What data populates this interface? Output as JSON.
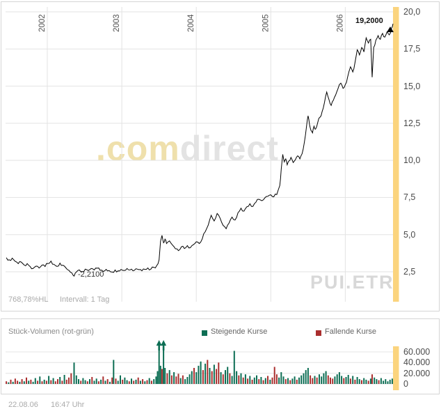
{
  "main_chart": {
    "current_price_label": "19,2000",
    "low_price_label": "-2,2100",
    "percent_hl": "768,78%HL",
    "interval": "Intervall: 1 Tag",
    "watermark": {
      "com": ".com",
      "direct": "direct",
      "symbol": "PUI.ETR"
    }
  },
  "volume_panel": {
    "title": "Stück-Volumen (rot-grün)",
    "legend": [
      {
        "label": "Steigende Kurse",
        "color": "#0d6e54"
      },
      {
        "label": "Fallende Kurse",
        "color": "#aa2e2e"
      }
    ]
  },
  "footer": {
    "date": "22.08.06",
    "time": "16:47 Uhr"
  },
  "chart_data": [
    {
      "type": "line",
      "name": "PUI.ETR",
      "x_range": [
        2001.44,
        2006.64
      ],
      "x_ticks": [
        {
          "label": "2002",
          "value": 2002
        },
        {
          "label": "2003",
          "value": 2003
        },
        {
          "label": "2004",
          "value": 2004
        },
        {
          "label": "2005",
          "value": 2005
        },
        {
          "label": "2006",
          "value": 2006
        }
      ],
      "y_ticks": [
        {
          "label": "20,0",
          "value": 20.0
        },
        {
          "label": "17,5",
          "value": 17.5
        },
        {
          "label": "15,0",
          "value": 15.0
        },
        {
          "label": "12,5",
          "value": 12.5
        },
        {
          "label": "10,0",
          "value": 10.0
        },
        {
          "label": "7,5",
          "value": 7.5
        },
        {
          "label": "5,0",
          "value": 5.0
        },
        {
          "label": "2,5",
          "value": 2.5
        }
      ],
      "grid": true,
      "line_color": "#000000",
      "highlight_band_color": "#fbd47e",
      "last_price": 19.2,
      "min_price": 2.21,
      "x": [
        2001.45,
        2001.49,
        2001.53,
        2001.57,
        2001.61,
        2001.65,
        2001.69,
        2001.73,
        2001.77,
        2001.81,
        2001.85,
        2001.89,
        2001.93,
        2001.97,
        2002.01,
        2002.05,
        2002.09,
        2002.13,
        2002.17,
        2002.21,
        2002.25,
        2002.29,
        2002.33,
        2002.36,
        2002.39,
        2002.43,
        2002.47,
        2002.51,
        2002.55,
        2002.59,
        2002.63,
        2002.67,
        2002.71,
        2002.75,
        2002.79,
        2002.83,
        2002.87,
        2002.91,
        2002.95,
        2002.99,
        2003.03,
        2003.07,
        2003.11,
        2003.15,
        2003.19,
        2003.23,
        2003.27,
        2003.31,
        2003.35,
        2003.39,
        2003.43,
        2003.47,
        2003.5,
        2003.52,
        2003.54,
        2003.56,
        2003.58,
        2003.6,
        2003.64,
        2003.68,
        2003.72,
        2003.76,
        2003.8,
        2003.84,
        2003.88,
        2003.92,
        2003.96,
        2004.0,
        2004.04,
        2004.08,
        2004.12,
        2004.16,
        2004.2,
        2004.24,
        2004.28,
        2004.32,
        2004.36,
        2004.4,
        2004.44,
        2004.48,
        2004.52,
        2004.56,
        2004.6,
        2004.64,
        2004.68,
        2004.72,
        2004.76,
        2004.8,
        2004.84,
        2004.88,
        2004.92,
        2004.96,
        2005.0,
        2005.04,
        2005.08,
        2005.12,
        2005.14,
        2005.16,
        2005.18,
        2005.2,
        2005.22,
        2005.24,
        2005.27,
        2005.3,
        2005.33,
        2005.36,
        2005.39,
        2005.42,
        2005.45,
        2005.48,
        2005.5,
        2005.52,
        2005.54,
        2005.56,
        2005.58,
        2005.6,
        2005.63,
        2005.66,
        2005.69,
        2005.72,
        2005.75,
        2005.78,
        2005.81,
        2005.84,
        2005.87,
        2005.9,
        2005.94,
        2005.97,
        2006.0,
        2006.03,
        2006.07,
        2006.1,
        2006.13,
        2006.16,
        2006.19,
        2006.22,
        2006.25,
        2006.28,
        2006.31,
        2006.34,
        2006.36,
        2006.38,
        2006.41,
        2006.44,
        2006.47,
        2006.5,
        2006.53,
        2006.56,
        2006.59,
        2006.62,
        2006.64
      ],
      "y": [
        3.45,
        3.3,
        3.42,
        3.2,
        3.05,
        3.15,
        2.95,
        3.05,
        2.85,
        2.72,
        2.88,
        2.75,
        2.95,
        2.85,
        3.05,
        3.22,
        3.0,
        2.86,
        3.08,
        2.94,
        2.76,
        2.6,
        2.42,
        2.21,
        2.48,
        2.62,
        2.52,
        2.68,
        2.58,
        2.72,
        2.62,
        2.74,
        2.6,
        2.52,
        2.66,
        2.58,
        2.48,
        2.62,
        2.56,
        2.66,
        2.58,
        2.72,
        2.62,
        2.56,
        2.7,
        2.64,
        2.56,
        2.66,
        2.76,
        2.68,
        2.8,
        2.92,
        3.3,
        4.55,
        4.95,
        4.45,
        4.7,
        4.4,
        4.58,
        4.3,
        4.05,
        3.92,
        4.18,
        4.06,
        4.26,
        4.12,
        4.32,
        4.52,
        4.4,
        4.72,
        5.2,
        5.65,
        6.3,
        5.92,
        6.42,
        6.1,
        5.62,
        5.4,
        5.78,
        6.18,
        5.98,
        6.48,
        6.78,
        6.58,
        6.88,
        7.08,
        6.9,
        7.18,
        7.38,
        7.28,
        7.48,
        7.58,
        7.68,
        7.55,
        7.7,
        8.3,
        9.4,
        10.4,
        9.9,
        10.1,
        9.7,
        9.95,
        10.2,
        9.85,
        10.05,
        10.3,
        10.1,
        10.45,
        11.2,
        12.3,
        13.0,
        12.4,
        12.0,
        11.85,
        12.3,
        12.1,
        12.55,
        12.9,
        13.3,
        13.9,
        14.6,
        14.1,
        13.7,
        14.05,
        14.4,
        14.8,
        15.2,
        14.85,
        15.1,
        15.6,
        16.3,
        15.95,
        16.6,
        17.45,
        17.1,
        17.6,
        17.3,
        18.25,
        17.9,
        18.15,
        15.6,
        17.6,
        18.1,
        18.4,
        18.15,
        18.55,
        18.3,
        18.65,
        18.45,
        18.9,
        19.2
      ]
    },
    {
      "type": "bar",
      "title": "Stück-Volumen (rot-grün)",
      "x_range": [
        2001.44,
        2006.64
      ],
      "y_range": [
        0,
        65000
      ],
      "y_ticks": [
        {
          "label": "60.000",
          "value": 60000
        },
        {
          "label": "40.000",
          "value": 40000
        },
        {
          "label": "20.000",
          "value": 20000
        },
        {
          "label": "0",
          "value": 0
        }
      ],
      "colors": {
        "up": "#0d6e54",
        "down": "#aa2e2e"
      },
      "legend_position": "top",
      "arrow_markers_x": [
        2003.5,
        2003.56
      ],
      "bars": [
        [
          2001.45,
          5000,
          "r"
        ],
        [
          2001.48,
          3000,
          "g"
        ],
        [
          2001.51,
          8000,
          "r"
        ],
        [
          2001.54,
          4000,
          "g"
        ],
        [
          2001.57,
          10000,
          "r"
        ],
        [
          2001.6,
          6000,
          "r"
        ],
        [
          2001.63,
          4000,
          "g"
        ],
        [
          2001.66,
          9000,
          "r"
        ],
        [
          2001.69,
          5000,
          "g"
        ],
        [
          2001.72,
          12000,
          "r"
        ],
        [
          2001.75,
          6000,
          "g"
        ],
        [
          2001.78,
          8000,
          "r"
        ],
        [
          2001.81,
          4000,
          "g"
        ],
        [
          2001.84,
          11000,
          "g"
        ],
        [
          2001.87,
          6000,
          "r"
        ],
        [
          2001.9,
          14000,
          "g"
        ],
        [
          2001.93,
          5000,
          "r"
        ],
        [
          2001.96,
          8000,
          "g"
        ],
        [
          2001.99,
          6000,
          "r"
        ],
        [
          2002.02,
          15000,
          "g"
        ],
        [
          2002.05,
          7000,
          "r"
        ],
        [
          2002.08,
          11000,
          "g"
        ],
        [
          2002.11,
          5000,
          "r"
        ],
        [
          2002.14,
          9000,
          "r"
        ],
        [
          2002.17,
          13000,
          "g"
        ],
        [
          2002.2,
          6000,
          "r"
        ],
        [
          2002.23,
          17000,
          "g"
        ],
        [
          2002.26,
          8000,
          "r"
        ],
        [
          2002.29,
          12000,
          "r"
        ],
        [
          2002.32,
          20000,
          "r"
        ],
        [
          2002.36,
          40000,
          "g"
        ],
        [
          2002.39,
          16000,
          "g"
        ],
        [
          2002.42,
          9000,
          "g"
        ],
        [
          2002.45,
          6000,
          "r"
        ],
        [
          2002.48,
          11000,
          "g"
        ],
        [
          2002.51,
          7000,
          "g"
        ],
        [
          2002.54,
          5000,
          "r"
        ],
        [
          2002.57,
          9000,
          "g"
        ],
        [
          2002.6,
          13000,
          "r"
        ],
        [
          2002.63,
          6000,
          "g"
        ],
        [
          2002.66,
          10000,
          "g"
        ],
        [
          2002.69,
          5000,
          "r"
        ],
        [
          2002.72,
          8000,
          "g"
        ],
        [
          2002.75,
          14000,
          "r"
        ],
        [
          2002.78,
          6000,
          "g"
        ],
        [
          2002.81,
          9000,
          "r"
        ],
        [
          2002.84,
          4000,
          "g"
        ],
        [
          2002.87,
          12000,
          "r"
        ],
        [
          2002.89,
          45000,
          "g"
        ],
        [
          2002.92,
          10000,
          "r"
        ],
        [
          2002.95,
          6000,
          "g"
        ],
        [
          2002.98,
          16000,
          "g"
        ],
        [
          2003.01,
          8000,
          "r"
        ],
        [
          2003.04,
          12000,
          "g"
        ],
        [
          2003.07,
          7000,
          "g"
        ],
        [
          2003.1,
          5000,
          "r"
        ],
        [
          2003.13,
          10000,
          "g"
        ],
        [
          2003.16,
          6000,
          "r"
        ],
        [
          2003.19,
          8000,
          "g"
        ],
        [
          2003.22,
          12000,
          "r"
        ],
        [
          2003.25,
          6000,
          "g"
        ],
        [
          2003.28,
          9000,
          "r"
        ],
        [
          2003.31,
          5000,
          "g"
        ],
        [
          2003.34,
          7000,
          "r"
        ],
        [
          2003.37,
          11000,
          "g"
        ],
        [
          2003.4,
          6000,
          "r"
        ],
        [
          2003.43,
          9000,
          "g"
        ],
        [
          2003.46,
          14000,
          "g"
        ],
        [
          2003.48,
          24000,
          "g"
        ],
        [
          2003.5,
          68000,
          "g"
        ],
        [
          2003.52,
          34000,
          "g"
        ],
        [
          2003.54,
          28000,
          "r"
        ],
        [
          2003.56,
          65000,
          "g"
        ],
        [
          2003.58,
          30000,
          "g"
        ],
        [
          2003.61,
          20000,
          "r"
        ],
        [
          2003.64,
          26000,
          "g"
        ],
        [
          2003.67,
          16000,
          "r"
        ],
        [
          2003.7,
          22000,
          "g"
        ],
        [
          2003.73,
          14000,
          "r"
        ],
        [
          2003.76,
          19000,
          "r"
        ],
        [
          2003.79,
          11000,
          "g"
        ],
        [
          2003.82,
          16000,
          "r"
        ],
        [
          2003.85,
          9000,
          "g"
        ],
        [
          2003.88,
          13000,
          "g"
        ],
        [
          2003.91,
          18000,
          "g"
        ],
        [
          2003.94,
          24000,
          "g"
        ],
        [
          2003.97,
          30000,
          "r"
        ],
        [
          2004.0,
          22000,
          "g"
        ],
        [
          2004.03,
          34000,
          "g"
        ],
        [
          2004.06,
          42000,
          "g"
        ],
        [
          2004.09,
          26000,
          "r"
        ],
        [
          2004.12,
          38000,
          "g"
        ],
        [
          2004.15,
          45000,
          "r"
        ],
        [
          2004.18,
          30000,
          "g"
        ],
        [
          2004.21,
          24000,
          "r"
        ],
        [
          2004.24,
          36000,
          "g"
        ],
        [
          2004.27,
          28000,
          "r"
        ],
        [
          2004.3,
          40000,
          "r"
        ],
        [
          2004.33,
          22000,
          "g"
        ],
        [
          2004.36,
          18000,
          "r"
        ],
        [
          2004.39,
          26000,
          "g"
        ],
        [
          2004.42,
          32000,
          "g"
        ],
        [
          2004.45,
          20000,
          "r"
        ],
        [
          2004.48,
          15000,
          "g"
        ],
        [
          2004.51,
          62000,
          "g"
        ],
        [
          2004.54,
          24000,
          "g"
        ],
        [
          2004.57,
          16000,
          "r"
        ],
        [
          2004.6,
          20000,
          "g"
        ],
        [
          2004.63,
          12000,
          "r"
        ],
        [
          2004.66,
          18000,
          "g"
        ],
        [
          2004.69,
          10000,
          "r"
        ],
        [
          2004.72,
          15000,
          "g"
        ],
        [
          2004.75,
          8000,
          "r"
        ],
        [
          2004.78,
          12000,
          "g"
        ],
        [
          2004.81,
          16000,
          "g"
        ],
        [
          2004.84,
          9000,
          "r"
        ],
        [
          2004.87,
          13000,
          "g"
        ],
        [
          2004.9,
          7000,
          "r"
        ],
        [
          2004.93,
          11000,
          "g"
        ],
        [
          2004.96,
          15000,
          "r"
        ],
        [
          2004.99,
          8000,
          "g"
        ],
        [
          2005.02,
          12000,
          "r"
        ],
        [
          2005.05,
          32000,
          "r"
        ],
        [
          2005.08,
          18000,
          "r"
        ],
        [
          2005.11,
          12000,
          "g"
        ],
        [
          2005.14,
          22000,
          "g"
        ],
        [
          2005.17,
          14000,
          "g"
        ],
        [
          2005.2,
          9000,
          "r"
        ],
        [
          2005.23,
          11000,
          "g"
        ],
        [
          2005.26,
          7000,
          "r"
        ],
        [
          2005.29,
          10000,
          "g"
        ],
        [
          2005.32,
          14000,
          "g"
        ],
        [
          2005.35,
          8000,
          "r"
        ],
        [
          2005.38,
          12000,
          "g"
        ],
        [
          2005.41,
          16000,
          "g"
        ],
        [
          2005.44,
          20000,
          "g"
        ],
        [
          2005.47,
          26000,
          "g"
        ],
        [
          2005.5,
          30000,
          "g"
        ],
        [
          2005.53,
          16000,
          "r"
        ],
        [
          2005.56,
          11000,
          "r"
        ],
        [
          2005.59,
          15000,
          "g"
        ],
        [
          2005.62,
          12000,
          "r"
        ],
        [
          2005.65,
          18000,
          "g"
        ],
        [
          2005.68,
          14000,
          "g"
        ],
        [
          2005.71,
          20000,
          "g"
        ],
        [
          2005.74,
          24000,
          "g"
        ],
        [
          2005.77,
          16000,
          "r"
        ],
        [
          2005.8,
          12000,
          "r"
        ],
        [
          2005.83,
          10000,
          "r"
        ],
        [
          2005.86,
          14000,
          "g"
        ],
        [
          2005.89,
          18000,
          "g"
        ],
        [
          2005.92,
          22000,
          "g"
        ],
        [
          2005.95,
          15000,
          "g"
        ],
        [
          2005.98,
          11000,
          "r"
        ],
        [
          2006.01,
          13000,
          "g"
        ],
        [
          2006.04,
          17000,
          "g"
        ],
        [
          2006.07,
          10000,
          "r"
        ],
        [
          2006.1,
          15000,
          "g"
        ],
        [
          2006.13,
          8000,
          "r"
        ],
        [
          2006.16,
          13000,
          "g"
        ],
        [
          2006.19,
          9000,
          "g"
        ],
        [
          2006.22,
          7000,
          "r"
        ],
        [
          2006.25,
          11000,
          "g"
        ],
        [
          2006.28,
          8000,
          "g"
        ],
        [
          2006.31,
          6000,
          "r"
        ],
        [
          2006.34,
          10000,
          "g"
        ],
        [
          2006.36,
          18000,
          "r"
        ],
        [
          2006.39,
          12000,
          "g"
        ],
        [
          2006.42,
          9000,
          "g"
        ],
        [
          2006.45,
          7000,
          "r"
        ],
        [
          2006.48,
          11000,
          "g"
        ],
        [
          2006.51,
          6000,
          "g"
        ],
        [
          2006.54,
          9000,
          "g"
        ],
        [
          2006.57,
          5000,
          "g"
        ],
        [
          2006.6,
          8000,
          "g"
        ],
        [
          2006.63,
          10000,
          "g"
        ]
      ]
    }
  ]
}
